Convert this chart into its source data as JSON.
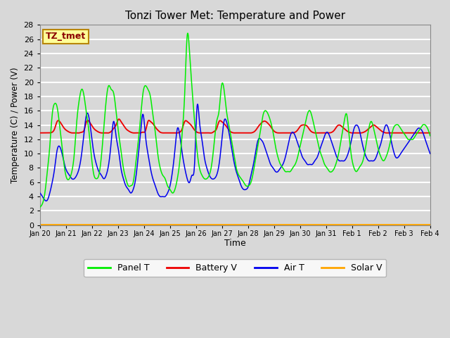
{
  "title": "Tonzi Tower Met: Temperature and Power",
  "xlabel": "Time",
  "ylabel": "Temperature (C) / Power (V)",
  "ylim": [
    0,
    28
  ],
  "yticks": [
    0,
    2,
    4,
    6,
    8,
    10,
    12,
    14,
    16,
    18,
    20,
    22,
    24,
    26,
    28
  ],
  "annotation_text": "TZ_tmet",
  "annotation_box_facecolor": "#FFFF99",
  "annotation_box_edgecolor": "#B8860B",
  "annotation_text_color": "#8B0000",
  "bg_color": "#D8D8D8",
  "plot_bg_color": "#D8D8D8",
  "grid_color": "#FFFFFF",
  "color_panel_t": "#00EE00",
  "color_battery_v": "#EE0000",
  "color_air_t": "#0000EE",
  "color_solar_v": "#FFA500",
  "tick_labels": [
    "Jan 20",
    "Jan 21",
    "Jan 22",
    "Jan 23",
    "Jan 24",
    "Jan 25",
    "Jan 26",
    "Jan 27",
    "Jan 28",
    "Jan 29",
    "Jan 30",
    "Jan 31",
    "Feb 1",
    "Feb 2",
    "Feb 3",
    "Feb 4"
  ],
  "panel_t_data": [
    2.5,
    3.0,
    4.5,
    7.5,
    11.0,
    15.5,
    17.0,
    16.5,
    14.0,
    11.0,
    8.0,
    6.5,
    6.5,
    7.5,
    10.0,
    14.5,
    17.5,
    19.0,
    18.0,
    15.5,
    13.0,
    9.5,
    7.0,
    6.5,
    7.0,
    9.5,
    13.5,
    17.5,
    19.5,
    19.0,
    18.5,
    16.0,
    13.0,
    10.5,
    8.0,
    6.5,
    5.5,
    5.5,
    6.0,
    8.5,
    11.5,
    15.0,
    18.5,
    19.5,
    19.0,
    18.0,
    15.5,
    13.0,
    10.0,
    8.0,
    7.0,
    6.5,
    5.5,
    5.0,
    4.5,
    5.0,
    6.5,
    9.0,
    13.0,
    18.5,
    26.5,
    24.0,
    19.0,
    14.5,
    10.5,
    8.0,
    7.0,
    6.5,
    6.5,
    7.0,
    8.5,
    11.5,
    14.5,
    16.0,
    19.5,
    19.0,
    16.0,
    14.0,
    12.0,
    10.0,
    8.0,
    7.0,
    6.5,
    6.0,
    5.5,
    5.5,
    6.0,
    7.5,
    9.5,
    11.5,
    13.5,
    15.5,
    16.0,
    15.5,
    14.5,
    13.0,
    11.0,
    9.5,
    8.5,
    8.0,
    7.5,
    7.5,
    7.5,
    8.0,
    8.5,
    9.5,
    11.0,
    12.5,
    14.0,
    15.5,
    16.0,
    15.0,
    13.5,
    12.0,
    10.5,
    9.5,
    8.5,
    8.0,
    7.5,
    7.5,
    8.0,
    9.0,
    10.5,
    12.5,
    14.5,
    15.5,
    12.5,
    9.5,
    8.0,
    7.5,
    8.0,
    8.5,
    9.5,
    11.5,
    13.5,
    14.5,
    13.5,
    12.0,
    10.5,
    9.5,
    9.0,
    9.5,
    10.5,
    12.0,
    13.5,
    14.0,
    14.0,
    13.5,
    13.0,
    12.5,
    12.0,
    12.0,
    12.0,
    12.5,
    13.0,
    13.5,
    14.0,
    14.0,
    13.5,
    12.5,
    11.5,
    10.5,
    10.0,
    10.0,
    10.5,
    11.5,
    13.0,
    14.5,
    16.0,
    16.0,
    15.0,
    13.5,
    11.5,
    10.0,
    9.0,
    9.5,
    11.0,
    13.5,
    16.0,
    16.0,
    15.0,
    13.0,
    11.5,
    10.5,
    10.0,
    10.0,
    10.5,
    11.5,
    12.5,
    13.5,
    14.5,
    15.5,
    16.0,
    15.0
  ],
  "battery_v_data": [
    12.9,
    12.9,
    12.9,
    12.9,
    12.9,
    13.0,
    13.5,
    14.5,
    14.5,
    14.0,
    13.5,
    13.2,
    13.0,
    12.9,
    12.9,
    12.9,
    12.9,
    13.0,
    13.3,
    14.5,
    14.5,
    14.0,
    13.5,
    13.2,
    13.0,
    12.9,
    12.9,
    12.9,
    12.9,
    13.1,
    13.5,
    14.0,
    14.8,
    14.5,
    14.0,
    13.5,
    13.2,
    13.0,
    12.9,
    12.9,
    12.9,
    12.9,
    13.0,
    13.2,
    14.5,
    14.5,
    14.2,
    13.7,
    13.3,
    13.0,
    12.9,
    12.9,
    12.9,
    12.9,
    12.9,
    12.9,
    12.9,
    13.0,
    13.5,
    14.5,
    14.5,
    14.2,
    13.8,
    13.3,
    13.0,
    12.9,
    12.9,
    12.9,
    12.9,
    12.9,
    12.9,
    13.1,
    13.5,
    14.5,
    14.5,
    14.2,
    13.8,
    13.3,
    13.0,
    12.9,
    12.9,
    12.9,
    12.9,
    12.9,
    12.9,
    12.9,
    12.9,
    13.0,
    13.3,
    13.8,
    14.2,
    14.5,
    14.5,
    14.2,
    13.8,
    13.3,
    13.0,
    12.9,
    12.9,
    12.9,
    12.9,
    12.9,
    12.9,
    12.9,
    13.0,
    13.3,
    13.8,
    14.0,
    14.0,
    13.8,
    13.3,
    13.0,
    12.9,
    12.9,
    12.9,
    12.9,
    12.9,
    12.9,
    12.9,
    13.0,
    13.3,
    13.8,
    14.0,
    13.8,
    13.5,
    13.2,
    13.0,
    12.9,
    12.9,
    12.9,
    12.9,
    12.9,
    13.0,
    13.2,
    13.5,
    13.8,
    14.0,
    13.8,
    13.5,
    13.2,
    13.0,
    12.9,
    12.9,
    12.9,
    12.9,
    12.9,
    12.9,
    12.9,
    12.9,
    12.9,
    12.9,
    12.9,
    12.9,
    12.9,
    12.9,
    12.9,
    12.9,
    12.9,
    12.9,
    12.9,
    12.9,
    13.0,
    13.2,
    13.5,
    13.8,
    14.0,
    13.8,
    13.3,
    13.0,
    12.9,
    12.9,
    12.9,
    12.9,
    12.9,
    13.0,
    13.3,
    13.8,
    14.0,
    13.8,
    13.3,
    13.0,
    12.9,
    12.9,
    12.9,
    12.9,
    12.9,
    12.9,
    13.0,
    13.3,
    13.8,
    14.0,
    13.5
  ],
  "air_t_data": [
    4.5,
    4.0,
    3.5,
    3.5,
    4.5,
    6.0,
    8.0,
    10.5,
    11.0,
    10.0,
    8.5,
    7.5,
    7.0,
    6.5,
    6.5,
    7.0,
    8.0,
    10.0,
    13.0,
    15.5,
    15.0,
    12.5,
    10.0,
    8.5,
    7.5,
    7.0,
    6.5,
    7.0,
    8.5,
    11.5,
    14.5,
    12.5,
    10.5,
    8.0,
    6.5,
    5.5,
    5.0,
    4.5,
    5.0,
    6.5,
    9.5,
    13.0,
    15.5,
    12.5,
    10.0,
    8.0,
    6.5,
    5.5,
    4.5,
    4.0,
    4.0,
    4.0,
    4.5,
    5.5,
    7.5,
    10.5,
    13.5,
    12.5,
    10.0,
    8.0,
    6.5,
    6.0,
    7.0,
    8.5,
    16.5,
    14.5,
    12.0,
    9.5,
    8.0,
    7.0,
    6.5,
    6.5,
    7.0,
    8.5,
    11.5,
    14.5,
    14.5,
    13.0,
    11.0,
    9.0,
    7.5,
    6.5,
    5.5,
    5.0,
    5.0,
    5.5,
    7.0,
    8.5,
    10.5,
    12.0,
    12.0,
    11.5,
    10.5,
    9.5,
    8.5,
    8.0,
    7.5,
    7.5,
    8.0,
    8.5,
    9.5,
    11.0,
    12.5,
    13.0,
    12.5,
    11.5,
    10.5,
    9.5,
    9.0,
    8.5,
    8.5,
    8.5,
    9.0,
    9.5,
    10.5,
    11.5,
    12.5,
    13.0,
    12.5,
    11.5,
    10.5,
    9.5,
    9.0,
    9.0,
    9.0,
    9.5,
    10.5,
    12.0,
    13.5,
    14.0,
    13.5,
    12.0,
    10.5,
    9.5,
    9.0,
    9.0,
    9.0,
    9.5,
    10.5,
    11.5,
    13.0,
    14.0,
    13.5,
    12.0,
    10.5,
    9.5,
    9.5,
    10.0,
    10.5,
    11.0,
    11.5,
    12.0,
    12.5,
    13.0,
    13.5,
    13.5,
    13.0,
    12.0,
    11.0,
    10.0,
    9.5,
    9.5,
    10.0,
    11.0,
    12.5,
    14.0,
    15.5,
    15.5,
    14.5,
    13.0,
    11.5,
    10.0,
    9.5,
    10.0,
    11.5,
    13.5,
    15.0,
    15.5,
    14.5,
    13.0,
    11.5,
    10.5,
    10.0,
    10.0,
    10.5,
    11.5,
    12.5,
    13.5,
    14.5,
    15.5,
    16.0,
    15.0
  ]
}
